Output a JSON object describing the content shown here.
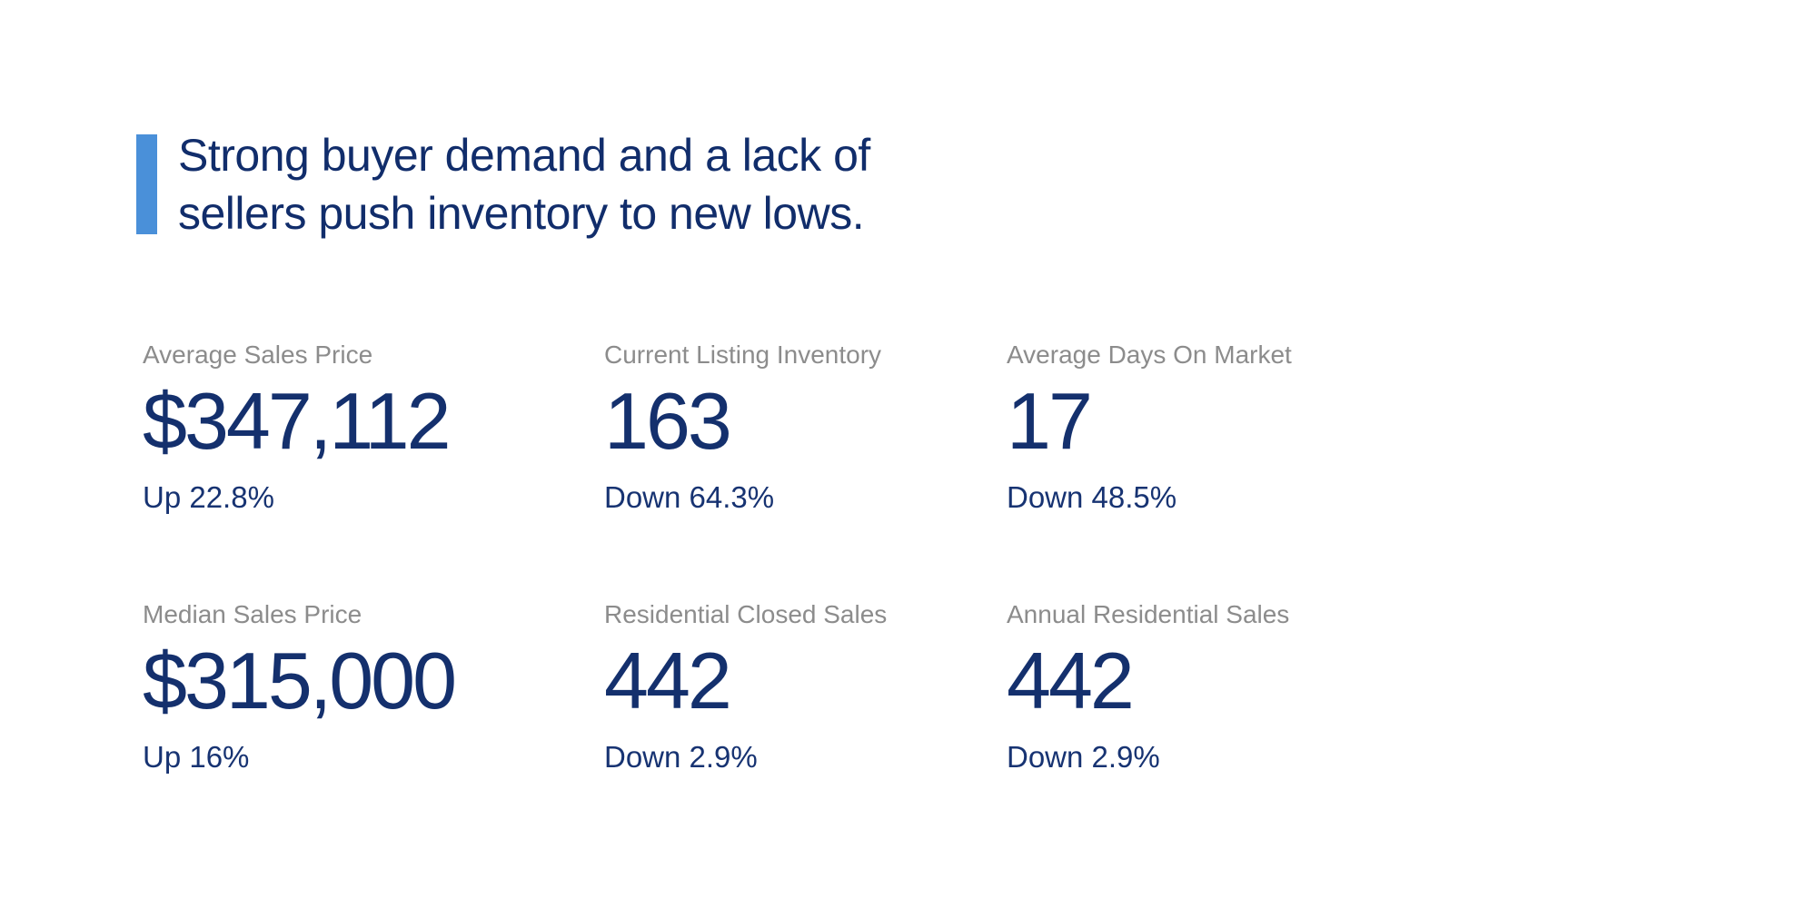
{
  "page": {
    "background": "#ffffff",
    "accent_color": "#4a90d9",
    "navy_color": "#14306d",
    "label_gray_color": "#8c8c8c"
  },
  "headline": {
    "line1": "Strong buyer demand and a lack of",
    "line2": "sellers push inventory to new lows."
  },
  "stats": [
    {
      "label": "Average Sales Price",
      "value": "$347,112",
      "change": "Up 22.8%",
      "direction": "up"
    },
    {
      "label": "Current Listing Inventory",
      "value": "163",
      "change": "Down 64.3%",
      "direction": "down"
    },
    {
      "label": "Average Days On Market",
      "value": "17",
      "change": "Down 48.5%",
      "direction": "down"
    },
    {
      "label": "Median Sales Price",
      "value": "$315,000",
      "change": "Up 16%",
      "direction": "up"
    },
    {
      "label": "Residential Closed Sales",
      "value": "442",
      "change": "Down 2.9%",
      "direction": "down"
    },
    {
      "label": "Annual Residential Sales",
      "value": "442",
      "change": "Down 2.9%",
      "direction": "down"
    }
  ]
}
